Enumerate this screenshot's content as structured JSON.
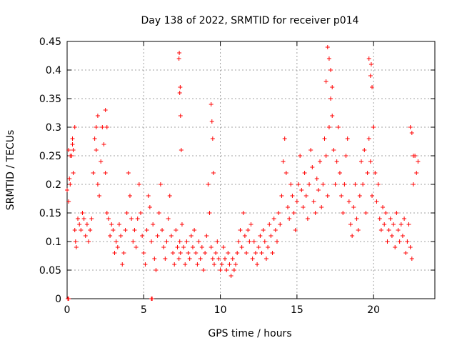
{
  "chart_data": {
    "type": "scatter",
    "title": "Day 138 of 2022, SRMTID for receiver p014",
    "xlabel": "GPS time / hours",
    "ylabel": "SRMTID / TECUs",
    "xlim": [
      0,
      24
    ],
    "ylim": [
      0,
      0.45
    ],
    "xticks": [
      0,
      5,
      10,
      15,
      20
    ],
    "xtick_labels": [
      "0",
      "5",
      "10",
      "15",
      "20"
    ],
    "yticks": [
      0,
      0.05,
      0.1,
      0.15,
      0.2,
      0.25,
      0.3,
      0.35,
      0.4,
      0.45
    ],
    "ytick_labels": [
      "0",
      "0.05",
      "0.1",
      "0.15",
      "0.2",
      "0.25",
      "0.3",
      "0.35",
      "0.4",
      "0.45"
    ],
    "grid": true,
    "marker": "+",
    "color": "#ff0000",
    "series": [
      {
        "name": "SRMTID",
        "x": [
          0.0,
          0.1,
          0.15,
          0.2,
          0.3,
          0.35,
          0.4,
          0.5,
          0.55,
          0.6,
          0.7,
          0.8,
          0.9,
          1.0,
          1.1,
          1.2,
          1.3,
          1.4,
          1.5,
          1.6,
          1.7,
          1.8,
          1.9,
          2.0,
          2.1,
          2.2,
          2.3,
          2.4,
          2.5,
          2.6,
          2.7,
          2.8,
          2.9,
          3.0,
          3.1,
          3.2,
          3.3,
          3.4,
          3.5,
          3.6,
          3.7,
          3.8,
          3.9,
          4.0,
          4.1,
          4.2,
          4.3,
          4.4,
          4.5,
          4.6,
          4.7,
          4.8,
          4.9,
          5.0,
          5.1,
          5.2,
          5.3,
          5.4,
          5.5,
          5.6,
          5.7,
          5.8,
          5.9,
          6.0,
          6.1,
          6.2,
          6.3,
          6.4,
          6.5,
          6.6,
          6.7,
          6.8,
          6.9,
          7.0,
          7.1,
          7.2,
          7.3,
          7.35,
          7.4,
          7.5,
          7.6,
          7.7,
          7.8,
          7.9,
          8.0,
          8.1,
          8.2,
          8.3,
          8.4,
          8.5,
          8.6,
          8.7,
          8.8,
          8.9,
          9.0,
          9.1,
          9.2,
          9.3,
          9.4,
          9.5,
          9.6,
          9.7,
          9.8,
          9.9,
          10.0,
          10.1,
          10.2,
          10.3,
          10.4,
          10.5,
          10.6,
          10.7,
          10.8,
          10.9,
          11.0,
          11.1,
          11.2,
          11.3,
          11.4,
          11.5,
          11.6,
          11.7,
          11.8,
          11.9,
          12.0,
          12.1,
          12.2,
          12.3,
          12.4,
          12.5,
          12.6,
          12.7,
          12.8,
          12.9,
          13.0,
          13.1,
          13.2,
          13.3,
          13.4,
          13.5,
          13.6,
          13.7,
          13.8,
          13.9,
          14.0,
          14.1,
          14.2,
          14.3,
          14.4,
          14.5,
          14.6,
          14.7,
          14.8,
          14.9,
          15.0,
          15.1,
          15.2,
          15.3,
          15.4,
          15.5,
          15.6,
          15.7,
          15.8,
          15.9,
          16.0,
          16.1,
          16.2,
          16.3,
          16.4,
          16.5,
          16.6,
          16.7,
          16.8,
          16.9,
          17.0,
          17.1,
          17.2,
          17.3,
          17.4,
          17.5,
          17.6,
          17.7,
          17.8,
          17.9,
          18.0,
          18.1,
          18.2,
          18.3,
          18.4,
          18.5,
          18.6,
          18.7,
          18.8,
          18.9,
          19.0,
          19.1,
          19.2,
          19.3,
          19.4,
          19.5,
          19.6,
          19.7,
          19.8,
          19.9,
          20.0,
          20.1,
          20.2,
          20.3,
          20.4,
          20.5,
          20.6,
          20.7,
          20.8,
          20.9,
          21.0,
          21.1,
          21.2,
          21.3,
          21.4,
          21.5,
          21.6,
          21.7,
          21.8,
          21.9,
          22.0,
          22.1,
          22.2,
          22.3,
          22.4,
          22.5,
          22.6,
          22.7,
          22.8,
          22.9,
          0.1,
          0.2,
          0.35,
          0.4,
          0.5,
          1.9,
          2.0,
          2.5,
          2.6,
          7.3,
          7.32,
          7.35,
          7.38,
          7.4,
          7.45,
          9.4,
          9.45,
          9.5,
          9.55,
          16.9,
          17.0,
          17.1,
          17.2,
          17.3,
          19.7,
          19.8,
          19.85,
          19.9,
          20.0,
          22.4,
          22.5,
          22.6,
          0.05,
          0.1,
          5.5,
          5.55
        ],
        "y": [
          0.19,
          0.17,
          0.21,
          0.2,
          0.25,
          0.27,
          0.22,
          0.12,
          0.1,
          0.09,
          0.14,
          0.13,
          0.12,
          0.15,
          0.14,
          0.11,
          0.13,
          0.1,
          0.12,
          0.14,
          0.22,
          0.28,
          0.26,
          0.2,
          0.18,
          0.24,
          0.3,
          0.27,
          0.22,
          0.15,
          0.14,
          0.11,
          0.13,
          0.12,
          0.08,
          0.1,
          0.09,
          0.13,
          0.11,
          0.06,
          0.08,
          0.12,
          0.15,
          0.22,
          0.18,
          0.14,
          0.1,
          0.12,
          0.09,
          0.14,
          0.2,
          0.15,
          0.11,
          0.08,
          0.06,
          0.12,
          0.18,
          0.16,
          0.1,
          0.13,
          0.07,
          0.05,
          0.11,
          0.15,
          0.2,
          0.12,
          0.09,
          0.07,
          0.1,
          0.14,
          0.18,
          0.11,
          0.08,
          0.06,
          0.12,
          0.09,
          0.07,
          0.1,
          0.08,
          0.13,
          0.09,
          0.06,
          0.1,
          0.08,
          0.07,
          0.11,
          0.09,
          0.12,
          0.08,
          0.06,
          0.1,
          0.07,
          0.09,
          0.05,
          0.08,
          0.11,
          0.2,
          0.15,
          0.09,
          0.07,
          0.06,
          0.08,
          0.1,
          0.07,
          0.05,
          0.06,
          0.09,
          0.07,
          0.05,
          0.08,
          0.06,
          0.04,
          0.07,
          0.05,
          0.06,
          0.08,
          0.1,
          0.12,
          0.09,
          0.15,
          0.11,
          0.08,
          0.12,
          0.1,
          0.13,
          0.07,
          0.1,
          0.08,
          0.06,
          0.09,
          0.11,
          0.08,
          0.12,
          0.1,
          0.07,
          0.09,
          0.13,
          0.11,
          0.08,
          0.14,
          0.12,
          0.1,
          0.15,
          0.13,
          0.18,
          0.24,
          0.28,
          0.22,
          0.16,
          0.14,
          0.2,
          0.18,
          0.15,
          0.12,
          0.17,
          0.2,
          0.25,
          0.19,
          0.16,
          0.22,
          0.18,
          0.14,
          0.2,
          0.26,
          0.23,
          0.17,
          0.15,
          0.21,
          0.19,
          0.24,
          0.16,
          0.2,
          0.28,
          0.25,
          0.18,
          0.3,
          0.35,
          0.32,
          0.26,
          0.2,
          0.24,
          0.3,
          0.22,
          0.18,
          0.15,
          0.2,
          0.25,
          0.28,
          0.17,
          0.13,
          0.11,
          0.16,
          0.2,
          0.14,
          0.12,
          0.18,
          0.24,
          0.2,
          0.26,
          0.15,
          0.22,
          0.28,
          0.24,
          0.18,
          0.3,
          0.22,
          0.17,
          0.2,
          0.14,
          0.12,
          0.16,
          0.13,
          0.15,
          0.1,
          0.12,
          0.14,
          0.11,
          0.13,
          0.09,
          0.15,
          0.12,
          0.1,
          0.13,
          0.11,
          0.14,
          0.08,
          0.1,
          0.13,
          0.09,
          0.07,
          0.2,
          0.25,
          0.22,
          0.24,
          0.26,
          0.25,
          0.28,
          0.26,
          0.3,
          0.3,
          0.32,
          0.33,
          0.3,
          0.42,
          0.43,
          0.36,
          0.37,
          0.32,
          0.26,
          0.34,
          0.31,
          0.28,
          0.22,
          0.38,
          0.44,
          0.42,
          0.4,
          0.37,
          0.42,
          0.39,
          0.41,
          0.37,
          0.3,
          0.3,
          0.29,
          0.25,
          0.0,
          0.0,
          0.0,
          0.0
        ]
      }
    ]
  }
}
